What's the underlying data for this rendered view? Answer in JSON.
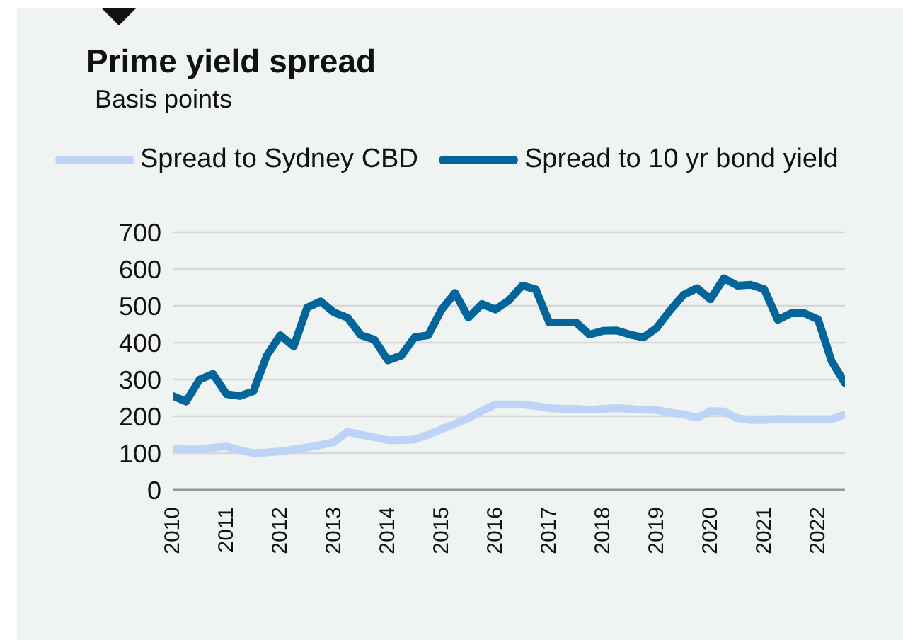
{
  "chart_data": {
    "type": "line",
    "title": "Prime yield spread",
    "subtitle": "Basis points",
    "x": [
      2010,
      2010.25,
      2010.5,
      2010.75,
      2011,
      2011.25,
      2011.5,
      2011.75,
      2012,
      2012.25,
      2012.5,
      2012.75,
      2013,
      2013.25,
      2013.5,
      2013.75,
      2014,
      2014.25,
      2014.5,
      2014.75,
      2015,
      2015.25,
      2015.5,
      2015.75,
      2016,
      2016.25,
      2016.5,
      2016.75,
      2017,
      2017.25,
      2017.5,
      2017.75,
      2018,
      2018.25,
      2018.5,
      2018.75,
      2019,
      2019.25,
      2019.5,
      2019.75,
      2020,
      2020.25,
      2020.5,
      2020.75,
      2021,
      2021.25,
      2021.5,
      2021.75,
      2022,
      2022.25,
      2022.5
    ],
    "series": [
      {
        "name": "Spread to Sydney CBD",
        "color": "#bdd3f7",
        "values": [
          113,
          110,
          110,
          115,
          118,
          108,
          100,
          102,
          105,
          110,
          115,
          122,
          130,
          158,
          150,
          143,
          135,
          135,
          137,
          150,
          165,
          180,
          195,
          215,
          232,
          232,
          232,
          228,
          222,
          220,
          220,
          218,
          220,
          222,
          220,
          218,
          217,
          210,
          205,
          196,
          214,
          213,
          195,
          190,
          190,
          193,
          192,
          192,
          192,
          192,
          205
        ]
      },
      {
        "name": "Spread to 10 yr bond yield",
        "color": "#04659a",
        "values": [
          255,
          240,
          300,
          315,
          260,
          255,
          268,
          365,
          420,
          390,
          495,
          512,
          482,
          468,
          420,
          408,
          352,
          365,
          415,
          420,
          490,
          535,
          468,
          505,
          490,
          515,
          555,
          545,
          455,
          455,
          455,
          422,
          432,
          433,
          422,
          414,
          440,
          488,
          530,
          548,
          518,
          575,
          555,
          557,
          545,
          462,
          480,
          480,
          463,
          350,
          290
        ]
      }
    ],
    "xlim": [
      2010,
      2022.5
    ],
    "xticks": [
      2010,
      2011,
      2012,
      2013,
      2014,
      2015,
      2016,
      2017,
      2018,
      2019,
      2020,
      2021,
      2022
    ],
    "ylim": [
      0,
      700
    ],
    "yticks": [
      0,
      100,
      200,
      300,
      400,
      500,
      600,
      700
    ],
    "grid": "y",
    "legend": "top",
    "marker": "none",
    "line_style": "solid"
  }
}
